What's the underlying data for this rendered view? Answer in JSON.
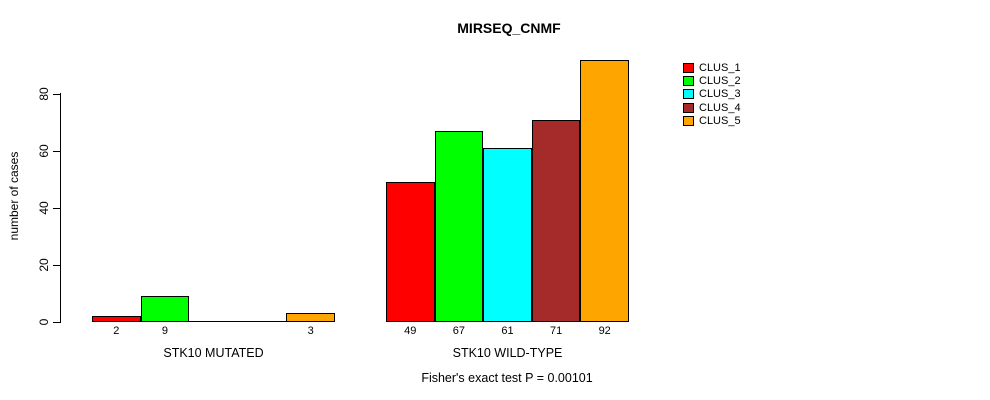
{
  "chart_data": {
    "type": "bar",
    "title": "MIRSEQ_CNMF",
    "xlabel": "",
    "ylabel": "number of cases",
    "yticks": [
      0,
      20,
      40,
      60,
      80
    ],
    "ylim": [
      0,
      92
    ],
    "grid": false,
    "legend_position": "right",
    "legend": [
      {
        "label": "CLUS_1",
        "color": "#FF0000"
      },
      {
        "label": "CLUS_2",
        "color": "#00FF00"
      },
      {
        "label": "CLUS_3",
        "color": "#00FFFF"
      },
      {
        "label": "CLUS_4",
        "color": "#A52A2A"
      },
      {
        "label": "CLUS_5",
        "color": "#FFA500"
      }
    ],
    "groups": [
      {
        "label": "STK10 MUTATED",
        "values": [
          2,
          9,
          0,
          0,
          3
        ],
        "bar_labels": [
          "2",
          "9",
          "",
          "",
          "3"
        ]
      },
      {
        "label": "STK10 WILD-TYPE",
        "values": [
          49,
          67,
          61,
          71,
          92
        ],
        "bar_labels": [
          "49",
          "67",
          "61",
          "71",
          "92"
        ]
      }
    ],
    "annotation": "Fisher's exact test P = 0.00101"
  }
}
